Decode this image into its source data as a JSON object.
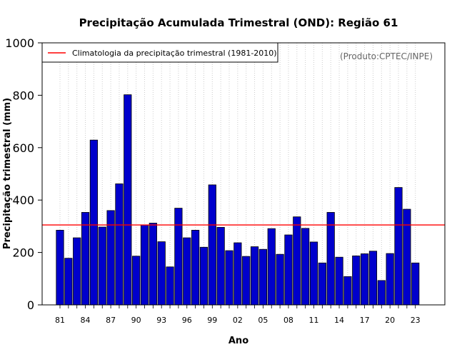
{
  "chart_data": {
    "type": "bar",
    "title": "Precipitação Acumulada Trimestral (OND): Região 61",
    "xlabel": "Ano",
    "ylabel": "Precipitação trimestral (mm)",
    "ylim": [
      0,
      1000
    ],
    "yticks": [
      0,
      200,
      400,
      600,
      800,
      1000
    ],
    "xtick_labels": [
      "81",
      "84",
      "87",
      "90",
      "93",
      "96",
      "99",
      "02",
      "05",
      "08",
      "11",
      "14",
      "17",
      "20",
      "23"
    ],
    "grid": "vertical dotted",
    "bar_color": "#0000cc",
    "line_color": "#ff0000",
    "legend_position": "top-left",
    "legend_label": "Climatologia da precipitação trimestral (1981-2010)",
    "climatology": 305,
    "credit": "(Produto:CPTEC/INPE)",
    "categories": [
      "1981",
      "1982",
      "1983",
      "1984",
      "1985",
      "1986",
      "1987",
      "1988",
      "1989",
      "1990",
      "1991",
      "1992",
      "1993",
      "1994",
      "1995",
      "1996",
      "1997",
      "1998",
      "1999",
      "2000",
      "2001",
      "2002",
      "2003",
      "2004",
      "2005",
      "2006",
      "2007",
      "2008",
      "2009",
      "2010",
      "2011",
      "2012",
      "2013",
      "2014",
      "2015",
      "2016",
      "2017",
      "2018",
      "2019",
      "2020",
      "2021",
      "2022",
      "2023"
    ],
    "values": [
      285,
      178,
      256,
      353,
      629,
      297,
      360,
      462,
      802,
      186,
      305,
      312,
      241,
      145,
      369,
      256,
      285,
      220,
      458,
      296,
      207,
      237,
      185,
      222,
      212,
      291,
      193,
      267,
      336,
      292,
      240,
      160,
      353,
      182,
      108,
      187,
      195,
      205,
      93,
      196,
      448,
      365,
      160
    ]
  }
}
